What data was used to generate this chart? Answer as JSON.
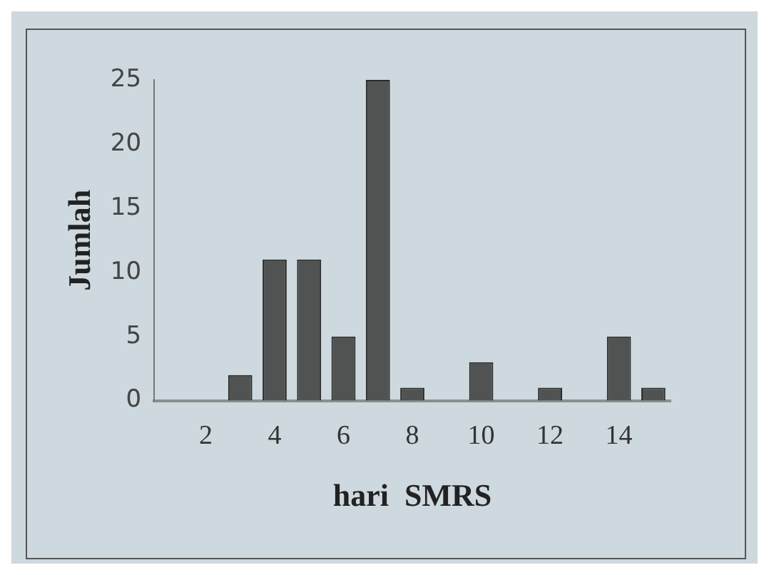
{
  "chart_data": {
    "type": "bar",
    "xlabel": "hari  SMRS",
    "ylabel": "Jumlah",
    "categories": [
      null,
      "2",
      null,
      "4",
      null,
      "6",
      null,
      "8",
      null,
      "10",
      null,
      "12",
      null,
      "14",
      null
    ],
    "values": [
      0,
      0,
      2,
      11,
      11,
      5,
      25,
      1,
      0,
      3,
      0,
      1,
      0,
      5,
      1
    ],
    "color": "#505352",
    "ylim": [
      0,
      25
    ],
    "yticks": [
      0,
      5,
      10,
      15,
      20,
      25
    ],
    "grid": false,
    "legend": false
  }
}
